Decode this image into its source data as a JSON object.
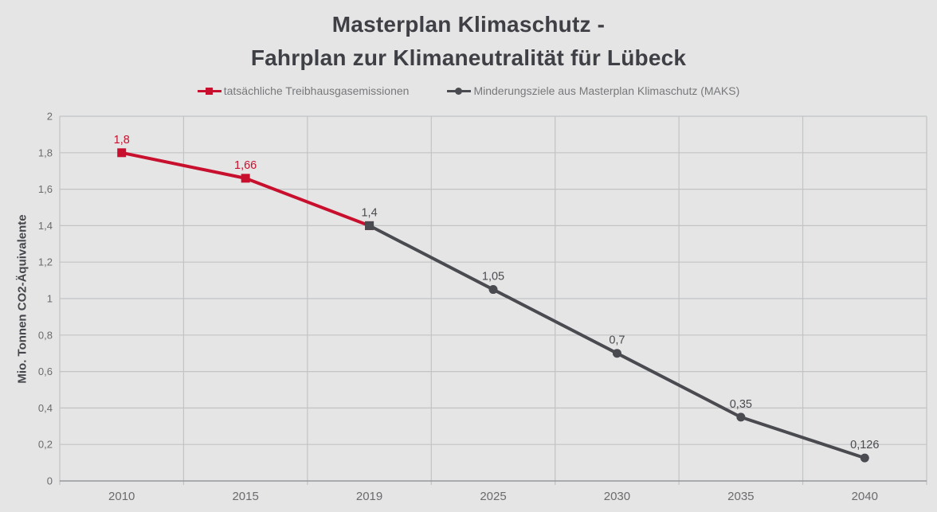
{
  "page": {
    "background": "#E5E5E5"
  },
  "title": {
    "line1": "Masterplan Klimaschutz -",
    "line2": "Fahrplan zur Klimaneutralität für Lübeck"
  },
  "legend": {
    "items": [
      {
        "label": "tatsächliche Treibhausgasemissionen",
        "color": "#C8102E",
        "marker": "square"
      },
      {
        "label": "Minderungsziele aus Masterplan Klimaschutz (MAKS)",
        "color": "#4A4B50",
        "marker": "circle"
      }
    ]
  },
  "chart_data": {
    "type": "line",
    "categories": [
      "2010",
      "2015",
      "2019",
      "2025",
      "2030",
      "2035",
      "2040"
    ],
    "series": [
      {
        "name": "tatsächliche Treibhausgasemissionen",
        "color": "#C8102E",
        "marker": "square",
        "line_width": 4,
        "points": [
          {
            "x": "2010",
            "y": 1.8,
            "label": "1,8"
          },
          {
            "x": "2015",
            "y": 1.66,
            "label": "1,66"
          },
          {
            "x": "2019",
            "y": 1.4
          }
        ]
      },
      {
        "name": "Minderungsziele aus Masterplan Klimaschutz (MAKS)",
        "color": "#4A4B50",
        "marker": "circle",
        "line_width": 4,
        "points": [
          {
            "x": "2019",
            "y": 1.4,
            "label": "1,4",
            "marker": "square"
          },
          {
            "x": "2025",
            "y": 1.05,
            "label": "1,05"
          },
          {
            "x": "2030",
            "y": 0.7,
            "label": "0,7"
          },
          {
            "x": "2035",
            "y": 0.35,
            "label": "0,35"
          },
          {
            "x": "2040",
            "y": 0.126,
            "label": "0,126"
          }
        ]
      }
    ],
    "title": "Masterplan Klimaschutz - Fahrplan zur Klimaneutralität für Lübeck",
    "xlabel": "",
    "ylabel": "Mio. Tonnen CO2-Äquivalente",
    "ylim": [
      0,
      2
    ],
    "ytick_step": 0.2,
    "ytick_labels": [
      "0",
      "0,2",
      "0,4",
      "0,6",
      "0,8",
      "1",
      "1,2",
      "1,4",
      "1,6",
      "1,8",
      "2"
    ],
    "grid": true,
    "legend_position": "top",
    "colors": {
      "grid": "#C2C3C5",
      "axis": "#97989B",
      "tick_label": "#6A6B6E"
    }
  }
}
